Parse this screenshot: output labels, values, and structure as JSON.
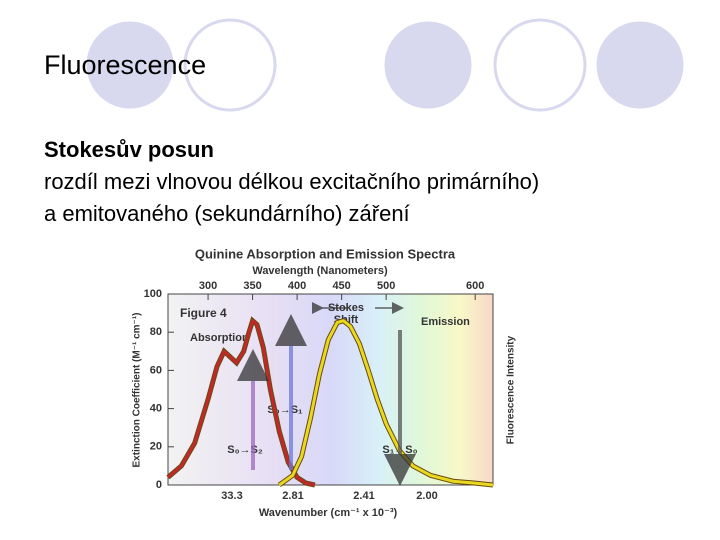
{
  "slide": {
    "title": "Fluorescence",
    "heading": "Stokesův posun",
    "lines": [
      "rozdíl mezi vlnovou délkou excitačního primárního)",
      "a emitovaného (sekundárního) záření"
    ]
  },
  "chart_data": {
    "type": "line",
    "title": "Quinine Absorption and Emission Spectra",
    "x_label": "Wavelength (Nanometers)",
    "y_label": "Extinction Coefficient (M⁻¹ cm⁻¹)",
    "y2_label": "Fluorescence Intensity",
    "x2_label": "Wavenumber (cm⁻¹ x 10⁻³)",
    "x2_tick_labels": [
      "33.3",
      "2.81",
      "2.41",
      "2.00"
    ],
    "xlim": [
      255,
      620
    ],
    "xticks": [
      300,
      350,
      400,
      450,
      500,
      600
    ],
    "ylim": [
      0,
      100
    ],
    "yticks": [
      0,
      20,
      40,
      60,
      80,
      100
    ],
    "annotations": [
      "Figure 4",
      "Absorption",
      "Emission",
      "Stokes",
      "Shift",
      "S₀→S₁",
      "S₀→S₂",
      "S₁→S₀"
    ],
    "series": [
      {
        "name": "Absorption",
        "color": "#c0282a",
        "x": [
          255,
          270,
          285,
          300,
          310,
          318,
          325,
          332,
          340,
          346,
          350,
          355,
          362,
          370,
          380,
          390,
          400,
          410,
          420
        ],
        "values": [
          4,
          10,
          22,
          45,
          62,
          70,
          67,
          64,
          70,
          80,
          86,
          84,
          72,
          50,
          28,
          12,
          4,
          1,
          0
        ]
      },
      {
        "name": "Emission",
        "color": "#e8d820",
        "x": [
          380,
          395,
          405,
          415,
          425,
          435,
          445,
          452,
          460,
          470,
          480,
          490,
          500,
          515,
          530,
          550,
          575,
          600,
          620
        ],
        "values": [
          0,
          5,
          15,
          35,
          58,
          76,
          85,
          86,
          83,
          74,
          60,
          45,
          32,
          18,
          10,
          5,
          2,
          1,
          0
        ]
      }
    ]
  }
}
